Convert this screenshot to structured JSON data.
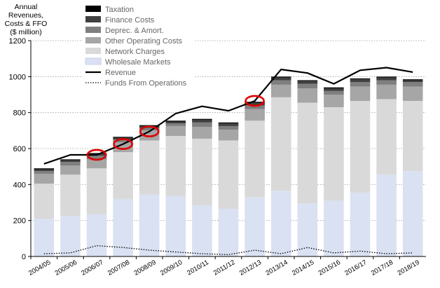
{
  "chart_data": {
    "type": "bar",
    "ylabel_lines": [
      "Annual Revenues,",
      "Costs & FFO",
      "($ million)"
    ],
    "ylim": [
      0,
      1200
    ],
    "yticks": [
      0,
      200,
      400,
      600,
      800,
      1000,
      1200
    ],
    "categories": [
      "2004/05",
      "2005/06",
      "2006/07",
      "2007/08",
      "2008/09",
      "2009/10",
      "2010/11",
      "2011/12",
      "2012/13",
      "2013/14",
      "2014/15",
      "2015/16",
      "2016/17",
      "2017/18",
      "2018/19"
    ],
    "series": [
      {
        "name": "Wholesale Markets",
        "color": "#d9e1f2",
        "values": [
          210,
          225,
          235,
          320,
          345,
          335,
          285,
          265,
          330,
          365,
          295,
          310,
          355,
          455,
          475
        ]
      },
      {
        "name": "Network Charges",
        "color": "#d9d9d9",
        "values": [
          195,
          230,
          255,
          260,
          300,
          335,
          370,
          380,
          425,
          520,
          560,
          520,
          510,
          420,
          390
        ]
      },
      {
        "name": "Other Operating Costs",
        "color": "#a6a6a6",
        "values": [
          55,
          50,
          50,
          55,
          55,
          55,
          65,
          60,
          65,
          70,
          80,
          70,
          80,
          80,
          80
        ]
      },
      {
        "name": "Deprec. & Amort.",
        "color": "#7f7f7f",
        "values": [
          15,
          20,
          20,
          15,
          15,
          15,
          25,
          20,
          20,
          25,
          25,
          20,
          25,
          25,
          25
        ]
      },
      {
        "name": "Finance Costs",
        "color": "#404040",
        "values": [
          10,
          10,
          10,
          10,
          10,
          10,
          15,
          15,
          15,
          15,
          15,
          15,
          15,
          15,
          10
        ]
      },
      {
        "name": "Taxation",
        "color": "#000000",
        "values": [
          5,
          5,
          5,
          5,
          5,
          5,
          5,
          5,
          5,
          5,
          5,
          5,
          5,
          5,
          5
        ]
      }
    ],
    "lines": [
      {
        "name": "Revenue",
        "style": "solid",
        "values": [
          515,
          565,
          565,
          625,
          695,
          795,
          835,
          810,
          865,
          1040,
          1020,
          960,
          1035,
          1050,
          1025
        ]
      },
      {
        "name": "Funds From Operations",
        "style": "dotted",
        "values": [
          15,
          20,
          60,
          50,
          35,
          25,
          15,
          10,
          35,
          15,
          50,
          20,
          30,
          15,
          20
        ]
      }
    ],
    "highlighted_categories": [
      "2006/07",
      "2007/08",
      "2008/09",
      "2012/13"
    ],
    "highlight_color": "#e00000",
    "legend_order": [
      "Taxation",
      "Finance Costs",
      "Deprec. & Amort.",
      "Other Operating Costs",
      "Network Charges",
      "Wholesale Markets",
      "Revenue",
      "Funds From Operations"
    ],
    "legend_placement": "top-left",
    "grid": "horizontal-dotted"
  }
}
